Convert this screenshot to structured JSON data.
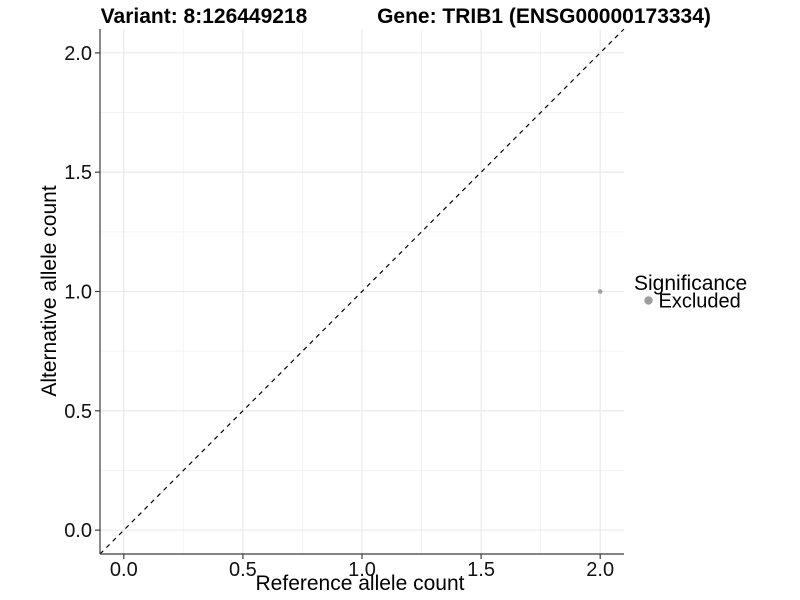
{
  "chart_data": {
    "type": "scatter",
    "titles": {
      "left": "Variant: 8:126449218",
      "right": "Gene: TRIB1 (ENSG00000173334)"
    },
    "xlabel": "Reference allele count",
    "ylabel": "Alternative allele count",
    "xlim": [
      -0.1,
      2.1
    ],
    "ylim": [
      -0.1,
      2.1
    ],
    "xticks": [
      {
        "value": 0.0,
        "label": "0.0"
      },
      {
        "value": 0.5,
        "label": "0.5"
      },
      {
        "value": 1.0,
        "label": "1.0"
      },
      {
        "value": 1.5,
        "label": "1.5"
      },
      {
        "value": 2.0,
        "label": "2.0"
      }
    ],
    "yticks": [
      {
        "value": 0.0,
        "label": "0.0"
      },
      {
        "value": 0.5,
        "label": "0.5"
      },
      {
        "value": 1.0,
        "label": "1.0"
      },
      {
        "value": 1.5,
        "label": "1.5"
      },
      {
        "value": 2.0,
        "label": "2.0"
      }
    ],
    "minor_gridlines_x": [
      0.25,
      0.75,
      1.25,
      1.75
    ],
    "minor_gridlines_y": [
      0.25,
      0.75,
      1.25,
      1.75
    ],
    "grid": "major and minor light grey gridlines on white panel",
    "reference_line": {
      "kind": "identity y=x",
      "style": "dashed",
      "x1": -0.1,
      "y1": -0.1,
      "x2": 2.1,
      "y2": 2.1,
      "color": "#000000"
    },
    "series": [
      {
        "name": "Excluded",
        "color": "#9e9e9e",
        "point_radius": 2.3,
        "points": [
          {
            "x": 2.0,
            "y": 1.0
          }
        ]
      }
    ],
    "legend": {
      "title": "Significance",
      "position": "right-middle",
      "items": [
        {
          "label": "Excluded",
          "color": "#9e9e9e"
        }
      ]
    },
    "colors": {
      "background": "#ffffff",
      "grid_major": "#e8e8e8",
      "grid_minor": "#f4f4f4",
      "axis_line": "#3c3c3c",
      "tick_mark": "#3c3c3c",
      "text": "#000000"
    }
  }
}
